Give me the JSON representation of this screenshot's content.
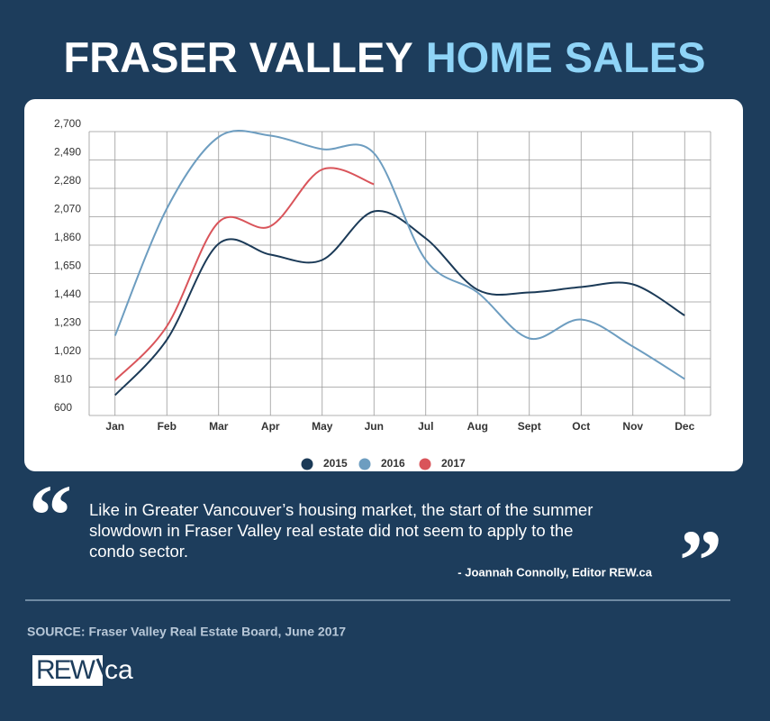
{
  "header": {
    "title_part1": "FRASER VALLEY",
    "title_part2": "HOME SALES"
  },
  "chart_data": {
    "type": "line",
    "categories": [
      "Jan",
      "Feb",
      "Mar",
      "Apr",
      "May",
      "Jun",
      "Jul",
      "Aug",
      "Sept",
      "Oct",
      "Nov",
      "Dec"
    ],
    "series": [
      {
        "name": "2015",
        "color": "#1b3a57",
        "values": [
          750,
          1160,
          1870,
          1790,
          1750,
          2110,
          1910,
          1530,
          1510,
          1550,
          1570,
          1340
        ]
      },
      {
        "name": "2016",
        "color": "#6d9dc0",
        "values": [
          1190,
          2130,
          2660,
          2670,
          2570,
          2540,
          1750,
          1510,
          1170,
          1310,
          1110,
          870
        ]
      },
      {
        "name": "2017",
        "color": "#d9545a",
        "values": [
          860,
          1260,
          2030,
          2000,
          2420,
          2310,
          null,
          null,
          null,
          null,
          null,
          null
        ]
      }
    ],
    "ylim": [
      600,
      2700
    ],
    "yticks": [
      600,
      810,
      {
        "value": 1020,
        "label": "1,020"
      },
      {
        "value": 1230,
        "label": "1,230"
      },
      {
        "value": 1440,
        "label": "1,440"
      },
      {
        "value": 1650,
        "label": "1,650"
      },
      {
        "value": 1860,
        "label": "1,860"
      },
      {
        "value": 2070,
        "label": "2,070"
      },
      {
        "value": 2280,
        "label": "2,280"
      },
      {
        "value": 2490,
        "label": "2,490"
      },
      {
        "value": 2700,
        "label": "2,700"
      }
    ],
    "grid": true,
    "legend": "bottom"
  },
  "quote": {
    "open_mark": "“",
    "close_mark": "”",
    "lines": [
      "Like in Greater Vancouver’s housing market, the start of the summer",
      "slowdown in Fraser Valley real estate did not seem to apply to the",
      "condo sector."
    ],
    "attribution": "- Joannah Connolly, Editor REW.ca"
  },
  "source": "SOURCE: Fraser Valley Real Estate Board, June 2017",
  "logo": {
    "left": "REW",
    "right": "ca"
  }
}
